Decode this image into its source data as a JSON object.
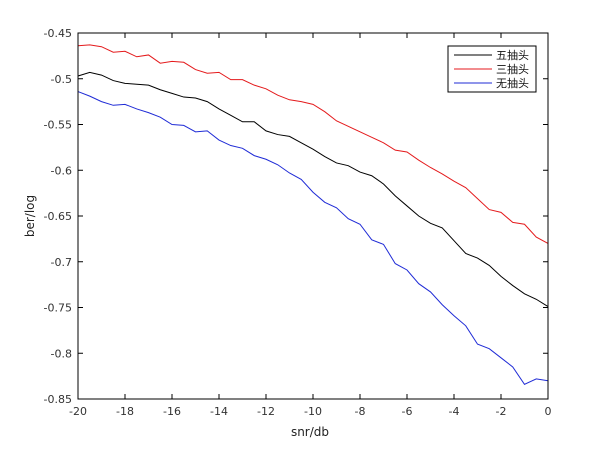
{
  "chart_data": {
    "type": "line",
    "xlabel": "snr/db",
    "ylabel": "ber/log",
    "xlim": [
      -20,
      0
    ],
    "ylim": [
      -0.85,
      -0.45
    ],
    "xticks": [
      -20,
      -18,
      -16,
      -14,
      -12,
      -10,
      -8,
      -6,
      -4,
      -2,
      0
    ],
    "yticks": [
      -0.45,
      -0.5,
      -0.55,
      -0.6,
      -0.65,
      -0.7,
      -0.75,
      -0.8,
      -0.85
    ],
    "xtick_labels": [
      "-20",
      "-18",
      "-16",
      "-14",
      "-12",
      "-10",
      "-8",
      "-6",
      "-4",
      "-2",
      "0"
    ],
    "ytick_labels": [
      "-0.45",
      "-0.5",
      "-0.55",
      "-0.6",
      "-0.65",
      "-0.7",
      "-0.75",
      "-0.8",
      "-0.85"
    ],
    "grid": false,
    "legend_position": "top-right",
    "x": [
      -20,
      -19.5,
      -19,
      -18.5,
      -18,
      -17.5,
      -17,
      -16.5,
      -16,
      -15.5,
      -15,
      -14.5,
      -14,
      -13.5,
      -13,
      -12.5,
      -12,
      -11.5,
      -11,
      -10.5,
      -10,
      -9.5,
      -9,
      -8.5,
      -8,
      -7.5,
      -7,
      -6.5,
      -6,
      -5.5,
      -5,
      -4.5,
      -4,
      -3.5,
      -3,
      -2.5,
      -2,
      -1.5,
      -1,
      -0.5,
      0
    ],
    "series": [
      {
        "name": "五抽头",
        "color": "#000000",
        "values": [
          -0.497,
          -0.493,
          -0.496,
          -0.502,
          -0.505,
          -0.506,
          -0.507,
          -0.512,
          -0.516,
          -0.52,
          -0.521,
          -0.525,
          -0.533,
          -0.54,
          -0.547,
          -0.547,
          -0.557,
          -0.561,
          -0.563,
          -0.57,
          -0.577,
          -0.585,
          -0.592,
          -0.595,
          -0.602,
          -0.606,
          -0.615,
          -0.628,
          -0.639,
          -0.65,
          -0.658,
          -0.663,
          -0.677,
          -0.691,
          -0.696,
          -0.704,
          -0.716,
          -0.726,
          -0.735,
          -0.741,
          -0.749
        ]
      },
      {
        "name": "三抽头",
        "color": "#e41a1c",
        "values": [
          -0.464,
          -0.463,
          -0.465,
          -0.471,
          -0.47,
          -0.476,
          -0.474,
          -0.483,
          -0.481,
          -0.482,
          -0.49,
          -0.494,
          -0.493,
          -0.501,
          -0.501,
          -0.507,
          -0.511,
          -0.518,
          -0.523,
          -0.525,
          -0.528,
          -0.536,
          -0.546,
          -0.552,
          -0.558,
          -0.564,
          -0.57,
          -0.578,
          -0.58,
          -0.589,
          -0.597,
          -0.604,
          -0.612,
          -0.619,
          -0.631,
          -0.643,
          -0.646,
          -0.657,
          -0.659,
          -0.673,
          -0.68
        ]
      },
      {
        "name": "无抽头",
        "color": "#1f2bd6",
        "values": [
          -0.514,
          -0.519,
          -0.525,
          -0.529,
          -0.528,
          -0.533,
          -0.537,
          -0.542,
          -0.55,
          -0.551,
          -0.558,
          -0.557,
          -0.567,
          -0.573,
          -0.576,
          -0.584,
          -0.588,
          -0.594,
          -0.603,
          -0.61,
          -0.624,
          -0.635,
          -0.641,
          -0.653,
          -0.659,
          -0.676,
          -0.681,
          -0.702,
          -0.709,
          -0.724,
          -0.733,
          -0.747,
          -0.759,
          -0.77,
          -0.79,
          -0.795,
          -0.805,
          -0.815,
          -0.834,
          -0.828,
          -0.83
        ]
      }
    ]
  }
}
